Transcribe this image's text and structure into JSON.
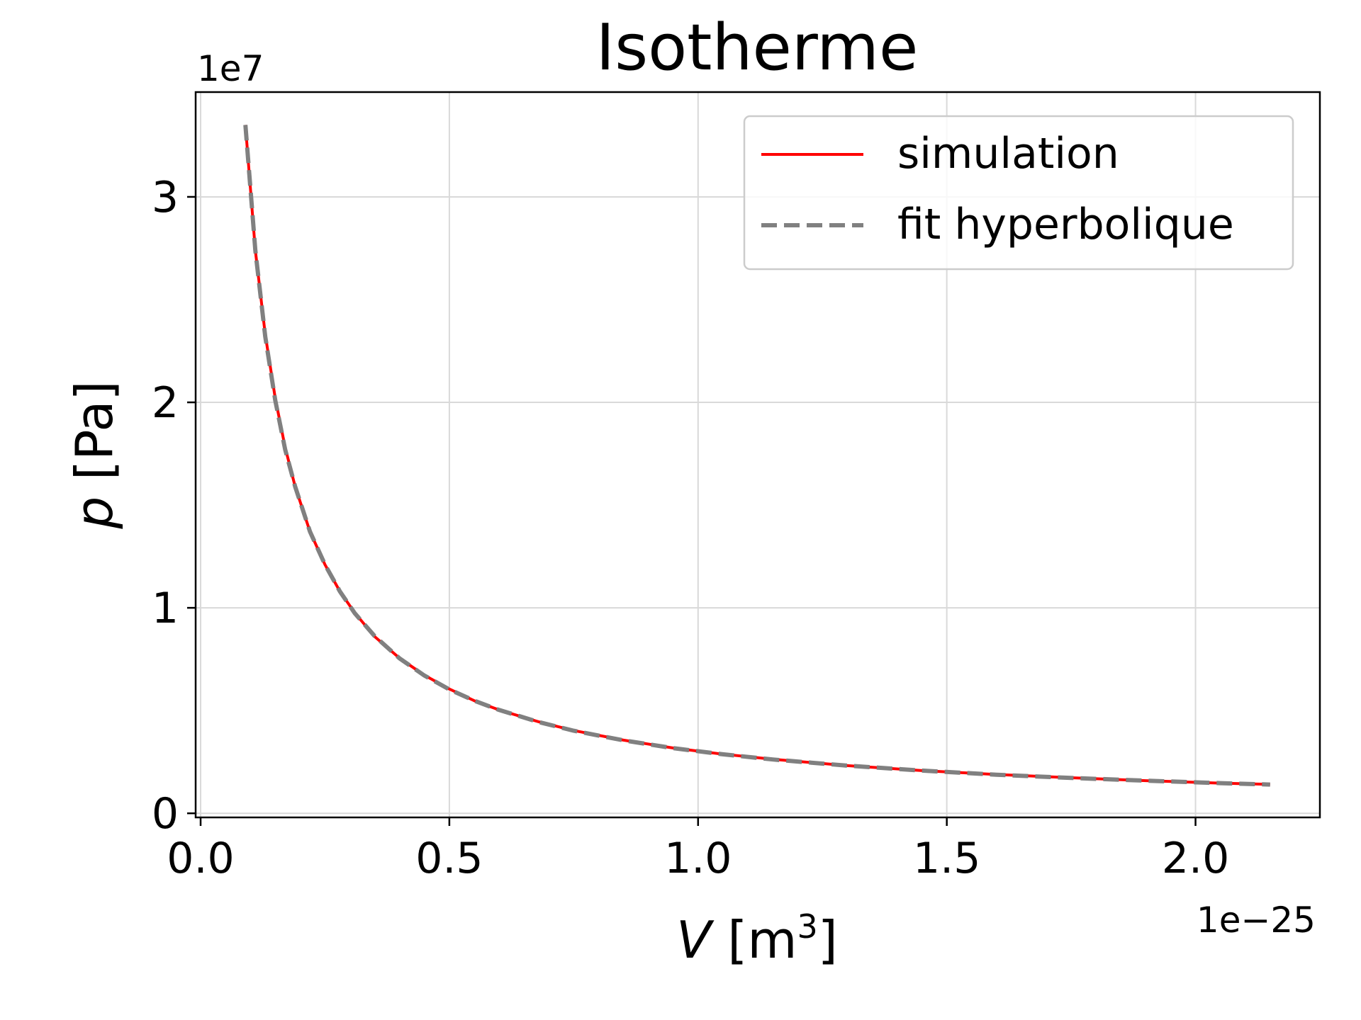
{
  "chart_data": {
    "type": "line",
    "title": "Isotherme",
    "xlabel": "V [m³]",
    "ylabel": "p [Pa]",
    "x_offset_label": "1e−25",
    "y_offset_label": "1e7",
    "xlim": [
      -0.01,
      2.25
    ],
    "ylim": [
      -0.02,
      3.51
    ],
    "x_ticks": [
      0.0,
      0.5,
      1.0,
      1.5,
      2.0
    ],
    "x_tick_labels": [
      "0.0",
      "0.5",
      "1.0",
      "1.5",
      "2.0"
    ],
    "y_ticks": [
      0,
      1,
      2,
      3
    ],
    "y_tick_labels": [
      "0",
      "1",
      "2",
      "3"
    ],
    "grid": true,
    "legend_position": "top-right",
    "series": [
      {
        "name": "simulation",
        "style": "solid",
        "color": "#ff0000",
        "x": [
          0.09,
          0.11,
          0.13,
          0.15,
          0.17,
          0.19,
          0.22,
          0.25,
          0.28,
          0.31,
          0.35,
          0.4,
          0.45,
          0.5,
          0.55,
          0.6,
          0.68,
          0.75,
          0.85,
          0.95,
          1.05,
          1.15,
          1.3,
          1.45,
          1.6,
          1.75,
          1.9,
          2.05,
          2.15
        ],
        "y": [
          3.35,
          2.74,
          2.33,
          2.02,
          1.78,
          1.59,
          1.37,
          1.21,
          1.08,
          0.975,
          0.86,
          0.755,
          0.672,
          0.605,
          0.548,
          0.503,
          0.445,
          0.403,
          0.356,
          0.318,
          0.288,
          0.263,
          0.232,
          0.208,
          0.189,
          0.173,
          0.159,
          0.147,
          0.141
        ]
      },
      {
        "name": "fit hyperbolique",
        "style": "dashed",
        "color": "#808080",
        "x": [
          0.09,
          0.11,
          0.13,
          0.15,
          0.17,
          0.19,
          0.22,
          0.25,
          0.28,
          0.31,
          0.35,
          0.4,
          0.45,
          0.5,
          0.55,
          0.6,
          0.68,
          0.75,
          0.85,
          0.95,
          1.05,
          1.15,
          1.3,
          1.45,
          1.6,
          1.75,
          1.9,
          2.05,
          2.15
        ],
        "y": [
          3.35,
          2.74,
          2.32,
          2.01,
          1.77,
          1.59,
          1.37,
          1.21,
          1.08,
          0.973,
          0.862,
          0.754,
          0.67,
          0.603,
          0.548,
          0.503,
          0.444,
          0.402,
          0.355,
          0.317,
          0.287,
          0.262,
          0.232,
          0.208,
          0.188,
          0.172,
          0.159,
          0.147,
          0.14
        ]
      }
    ]
  }
}
